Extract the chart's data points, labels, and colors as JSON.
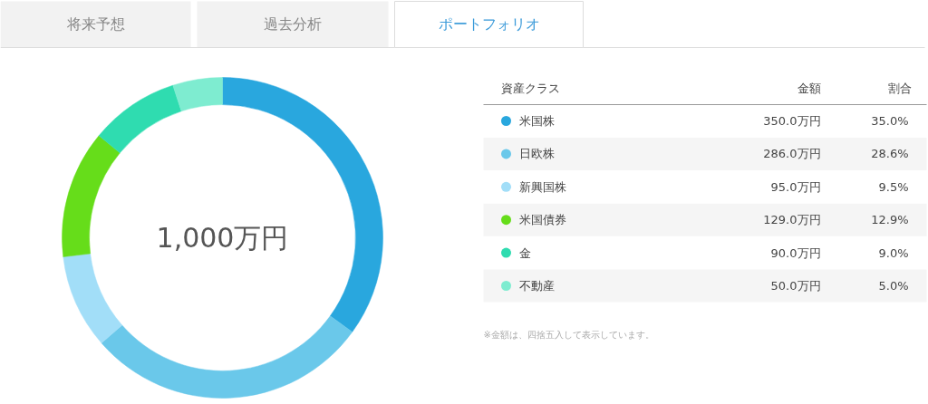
{
  "chart_data": {
    "type": "donut",
    "categories": [
      "米国株",
      "日欧株",
      "新興国株",
      "米国債券",
      "金",
      "不動産"
    ],
    "values": [
      350,
      286,
      95,
      129,
      90,
      50
    ],
    "colors": [
      "#29a7de",
      "#6ac8ea",
      "#a2def8",
      "#66dd1a",
      "#2fdcb0",
      "#7eecd0"
    ],
    "value_labels": [
      "350.0万円",
      "286.0万円",
      "95.0万円",
      "129.0万円",
      "90.0万円",
      "50.0万円"
    ],
    "legend": "right",
    "legend_title": "資産クラス",
    "annotations": [
      "将来予想",
      "過去分析",
      "ポートフォリオ",
      "金額",
      "割合",
      "35.0%",
      "28.6%",
      "9.5%",
      "12.9%",
      "9.0%",
      "5.0%",
      "1,000万円",
      "※金額は、四捨五入して表示しています。"
    ]
  }
}
